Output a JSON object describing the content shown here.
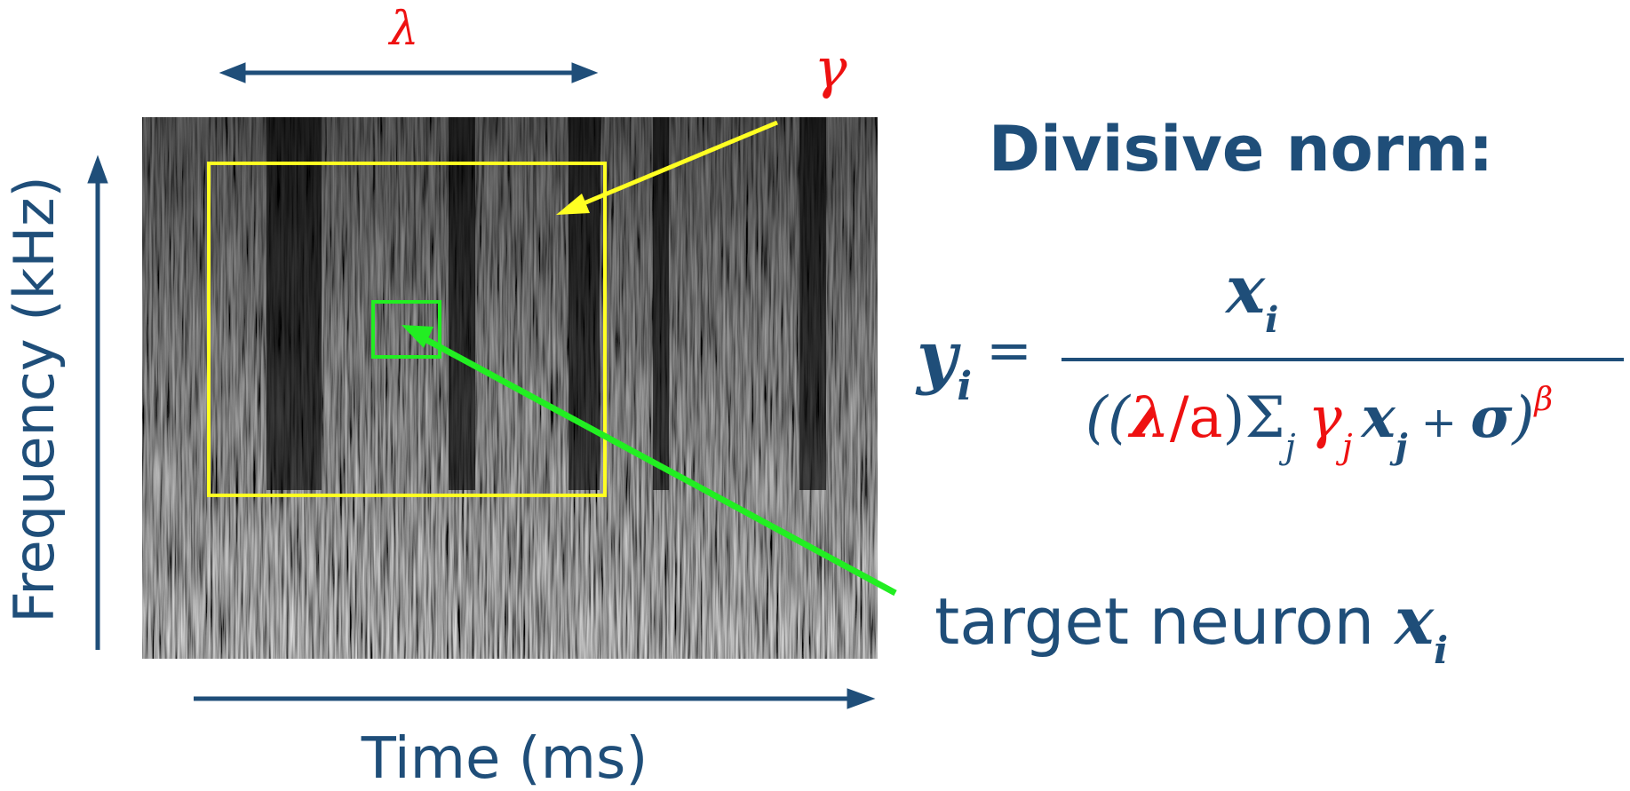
{
  "labels": {
    "lambda_symbol": "λ",
    "gamma_symbol": "γ",
    "time_axis": "Time (ms)",
    "frequency_axis": "Frequency (kHz)",
    "title": "Divisive norm:"
  },
  "formula": {
    "lhs_var": "y",
    "lhs_sub": "i",
    "equals": "=",
    "numerator_var": "x",
    "numerator_sub": "i",
    "den_open": "((",
    "den_lambda": "λ",
    "den_slash_a": "/a",
    "den_close_sum": ")Σ",
    "den_sum_sub": "j",
    "den_gamma": "γ",
    "den_gamma_sub": "j",
    "den_x": "x",
    "den_x_sub": "j",
    "den_plus": " + ",
    "den_sigma": "σ",
    "den_close": ")",
    "den_exponent": "β"
  },
  "target_label": {
    "text": "target neuron ",
    "var": "x",
    "sub": "i"
  },
  "colors": {
    "navy": "#1f4e79",
    "red": "#ee1111",
    "yellow": "#ffff22",
    "green": "#22ee22"
  }
}
